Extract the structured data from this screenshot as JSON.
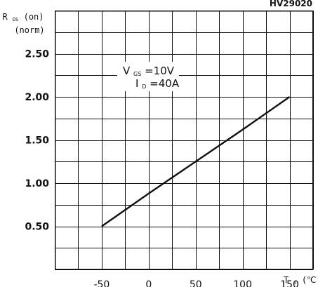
{
  "chart_data": {
    "type": "line",
    "part_number": "HV29020",
    "ylabel_line1": "R",
    "ylabel_line1_sub": "DS",
    "ylabel_line1_suffix": "(on)",
    "ylabel_line2": "(norm)",
    "xlabel_main": "T",
    "xlabel_sub": "J",
    "xlabel_unit": "(℃)",
    "annotation_line1_main": "V",
    "annotation_line1_sub": "GS",
    "annotation_line1_rest": "=10V",
    "annotation_line2_main": "I",
    "annotation_line2_sub": "D",
    "annotation_line2_rest": "=40A",
    "x_ticks": [
      "-50",
      "0",
      "50",
      "100",
      "150"
    ],
    "y_ticks": [
      "0.50",
      "1.00",
      "1.50",
      "2.00",
      "2.50"
    ],
    "x_tick_values": [
      -50,
      0,
      50,
      100,
      150
    ],
    "y_tick_values": [
      0.5,
      1.0,
      1.5,
      2.0,
      2.5
    ],
    "xlim": [
      -100,
      175
    ],
    "ylim": [
      0,
      3.0
    ],
    "x_grid_step": 25,
    "y_grid_step": 0.25,
    "grid": true,
    "series": [
      {
        "x": [
          -50,
          0,
          50,
          100,
          150
        ],
        "y": [
          0.5,
          0.88,
          1.25,
          1.62,
          2.0
        ],
        "color": "#111111"
      }
    ]
  }
}
